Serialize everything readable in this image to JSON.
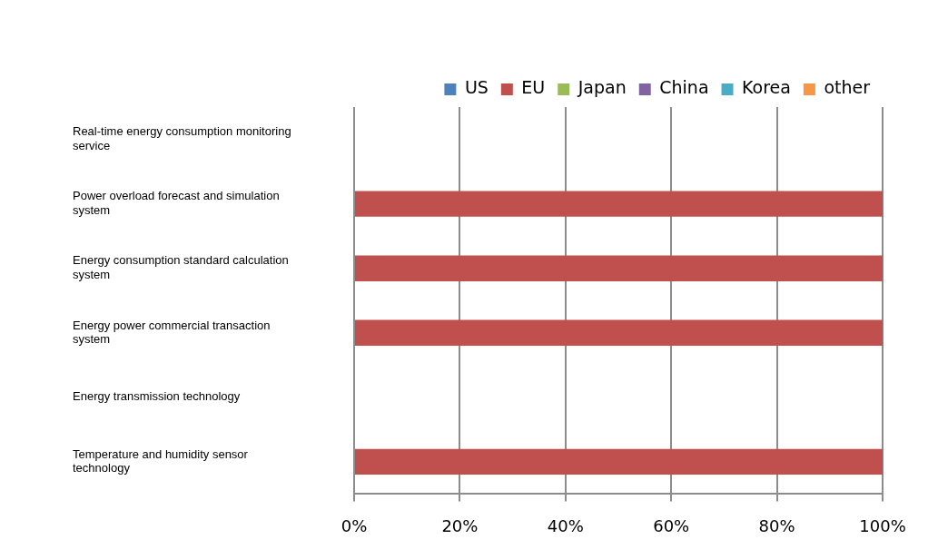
{
  "chart_data": {
    "type": "bar",
    "orientation": "horizontal",
    "stacked": true,
    "grid": true,
    "legend": "top",
    "categories": [
      "Real-time energy consumption monitoring service",
      "Power overload forecast and simulation system",
      "Energy consumption standard calculation system",
      "Energy power commercial transaction system",
      "Energy transmission technology",
      "Temperature and humidity sensor technology"
    ],
    "series": [
      {
        "name": "US",
        "color": "#4f81bd",
        "values": [
          0,
          0,
          0,
          0,
          0,
          0
        ]
      },
      {
        "name": "EU",
        "color": "#c0504d",
        "values": [
          0,
          100,
          100,
          100,
          0,
          100
        ]
      },
      {
        "name": "Japan",
        "color": "#9bbb59",
        "values": [
          0,
          0,
          0,
          0,
          0,
          0
        ]
      },
      {
        "name": "China",
        "color": "#8064a2",
        "values": [
          0,
          0,
          0,
          0,
          0,
          0
        ]
      },
      {
        "name": "Korea",
        "color": "#4bacc6",
        "values": [
          0,
          0,
          0,
          0,
          0,
          0
        ]
      },
      {
        "name": "other",
        "color": "#f79646",
        "values": [
          0,
          0,
          0,
          0,
          0,
          0
        ]
      }
    ],
    "xlim": [
      0,
      100
    ],
    "xticks": [
      {
        "value": 0,
        "label": "0%"
      },
      {
        "value": 20,
        "label": "20%"
      },
      {
        "value": 40,
        "label": "40%"
      },
      {
        "value": 60,
        "label": "60%"
      },
      {
        "value": 80,
        "label": "80%"
      },
      {
        "value": 100,
        "label": "100%"
      }
    ]
  }
}
